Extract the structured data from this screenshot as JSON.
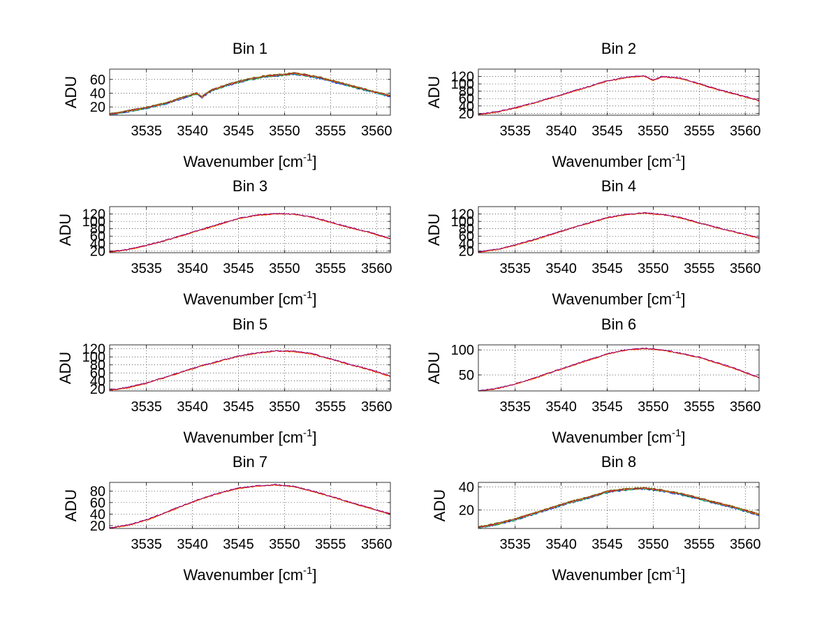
{
  "figure": {
    "background": "#ffffff",
    "grid": "dotted",
    "series_colors": [
      "#0000ff",
      "#00aa00",
      "#00bfbf",
      "#ff7f00",
      "#ff0000",
      "#800080",
      "#7f7f00"
    ]
  },
  "chart_data": [
    {
      "type": "line",
      "title": "Bin 1",
      "xlabel": "Wavenumber [cm",
      "xlabel_sup": "-1",
      "xlabel_end": "]",
      "ylabel": "ADU",
      "xlim": [
        3531,
        3561.5
      ],
      "ylim": [
        8,
        75
      ],
      "xticks": [
        3535,
        3540,
        3545,
        3550,
        3555,
        3560
      ],
      "yticks": [
        20,
        40,
        60
      ],
      "x": [
        3531,
        3533,
        3535,
        3537,
        3539,
        3540.5,
        3541,
        3542,
        3544,
        3546,
        3548,
        3550,
        3551,
        3552,
        3554,
        3556,
        3558,
        3560,
        3561.5
      ],
      "y": [
        9,
        14,
        19,
        25,
        34,
        40,
        34,
        44,
        53,
        60,
        65,
        67,
        69,
        67,
        62,
        55,
        48,
        41,
        36
      ]
    },
    {
      "type": "line",
      "title": "Bin 2",
      "xlabel": "Wavenumber [cm",
      "xlabel_sup": "-1",
      "xlabel_end": "]",
      "ylabel": "ADU",
      "xlim": [
        3531,
        3561.5
      ],
      "ylim": [
        15,
        140
      ],
      "xticks": [
        3535,
        3540,
        3545,
        3550,
        3555,
        3560
      ],
      "yticks": [
        20,
        40,
        60,
        80,
        100,
        120
      ],
      "x": [
        3531,
        3533,
        3535,
        3537,
        3539,
        3541,
        3543,
        3545,
        3547,
        3549,
        3550,
        3551,
        3553,
        3555,
        3557,
        3559,
        3561.5
      ],
      "y": [
        17,
        24,
        35,
        48,
        63,
        78,
        93,
        108,
        117,
        122,
        110,
        120,
        115,
        100,
        85,
        72,
        55
      ]
    },
    {
      "type": "line",
      "title": "Bin 3",
      "xlabel": "Wavenumber [cm",
      "xlabel_sup": "-1",
      "xlabel_end": "]",
      "ylabel": "ADU",
      "xlim": [
        3531,
        3561.5
      ],
      "ylim": [
        15,
        140
      ],
      "xticks": [
        3535,
        3540,
        3545,
        3550,
        3555,
        3560
      ],
      "yticks": [
        20,
        40,
        60,
        80,
        100,
        120
      ],
      "x": [
        3531,
        3533,
        3535,
        3537,
        3539,
        3541,
        3543,
        3545,
        3547,
        3549,
        3551,
        3553,
        3555,
        3557,
        3559,
        3561.5
      ],
      "y": [
        17,
        24,
        35,
        48,
        63,
        78,
        93,
        108,
        117,
        121,
        120,
        112,
        98,
        84,
        72,
        53
      ]
    },
    {
      "type": "line",
      "title": "Bin 4",
      "xlabel": "Wavenumber [cm",
      "xlabel_sup": "-1",
      "xlabel_end": "]",
      "ylabel": "ADU",
      "xlim": [
        3531,
        3561.5
      ],
      "ylim": [
        15,
        140
      ],
      "xticks": [
        3535,
        3540,
        3545,
        3550,
        3555,
        3560
      ],
      "yticks": [
        20,
        40,
        60,
        80,
        100,
        120
      ],
      "x": [
        3531,
        3533,
        3535,
        3537,
        3539,
        3541,
        3543,
        3545,
        3547,
        3549,
        3551,
        3553,
        3555,
        3557,
        3559,
        3561.5
      ],
      "y": [
        17,
        24,
        36,
        50,
        66,
        81,
        96,
        110,
        119,
        123,
        119,
        110,
        96,
        83,
        71,
        55
      ]
    },
    {
      "type": "line",
      "title": "Bin 5",
      "xlabel": "Wavenumber [cm",
      "xlabel_sup": "-1",
      "xlabel_end": "]",
      "ylabel": "ADU",
      "xlim": [
        3531,
        3561.5
      ],
      "ylim": [
        15,
        130
      ],
      "xticks": [
        3535,
        3540,
        3545,
        3550,
        3555,
        3560
      ],
      "yticks": [
        20,
        40,
        60,
        80,
        100,
        120
      ],
      "x": [
        3531,
        3533,
        3535,
        3537,
        3539,
        3541,
        3543,
        3545,
        3547,
        3549,
        3551,
        3553,
        3555,
        3557,
        3559,
        3561.5
      ],
      "y": [
        17,
        24,
        35,
        49,
        64,
        78,
        90,
        102,
        110,
        115,
        114,
        108,
        95,
        82,
        70,
        52
      ]
    },
    {
      "type": "line",
      "title": "Bin 6",
      "xlabel": "Wavenumber [cm",
      "xlabel_sup": "-1",
      "xlabel_end": "]",
      "ylabel": "ADU",
      "xlim": [
        3531,
        3561.5
      ],
      "ylim": [
        18,
        110
      ],
      "xticks": [
        3535,
        3540,
        3545,
        3550,
        3555,
        3560
      ],
      "yticks": [
        50,
        100
      ],
      "x": [
        3531,
        3533,
        3535,
        3537,
        3539,
        3541,
        3543,
        3545,
        3547,
        3549,
        3551,
        3553,
        3555,
        3557,
        3559,
        3561.5
      ],
      "y": [
        18,
        23,
        32,
        43,
        56,
        68,
        80,
        92,
        100,
        103,
        100,
        93,
        85,
        74,
        62,
        45
      ]
    },
    {
      "type": "line",
      "title": "Bin 7",
      "xlabel": "Wavenumber [cm",
      "xlabel_sup": "-1",
      "xlabel_end": "]",
      "ylabel": "ADU",
      "xlim": [
        3531,
        3561.5
      ],
      "ylim": [
        15,
        95
      ],
      "xticks": [
        3535,
        3540,
        3545,
        3550,
        3555,
        3560
      ],
      "yticks": [
        20,
        40,
        60,
        80
      ],
      "x": [
        3531,
        3533,
        3535,
        3537,
        3539,
        3541,
        3543,
        3545,
        3547,
        3549,
        3551,
        3553,
        3555,
        3557,
        3559,
        3561.5
      ],
      "y": [
        16,
        21,
        30,
        42,
        55,
        67,
        77,
        85,
        89,
        91,
        88,
        80,
        71,
        61,
        52,
        40
      ]
    },
    {
      "type": "line",
      "title": "Bin 8",
      "xlabel": "Wavenumber [cm",
      "xlabel_sup": "-1",
      "xlabel_end": "]",
      "ylabel": "ADU",
      "xlim": [
        3531,
        3561.5
      ],
      "ylim": [
        4,
        44
      ],
      "xticks": [
        3535,
        3540,
        3545,
        3550,
        3555,
        3560
      ],
      "yticks": [
        20,
        40
      ],
      "x": [
        3531,
        3533,
        3535,
        3537,
        3539,
        3541,
        3543,
        3545,
        3547,
        3549,
        3551,
        3553,
        3555,
        3557,
        3559,
        3561.5
      ],
      "y": [
        5,
        8,
        12,
        17,
        22,
        27,
        31,
        36,
        38,
        39,
        37,
        34,
        30,
        26,
        22,
        16
      ]
    }
  ]
}
